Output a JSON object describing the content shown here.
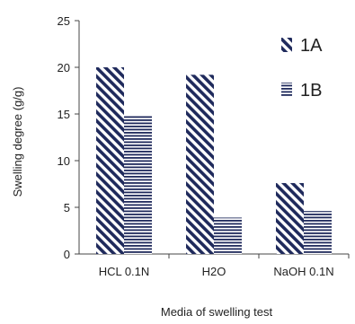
{
  "chart_data": {
    "type": "bar",
    "title": "",
    "xlabel": "Media of swelling test",
    "ylabel": "Swelling degree (g/g)",
    "categories": [
      "HCL 0.1N",
      "H2O",
      "NaOH 0.1N"
    ],
    "series": [
      {
        "name": "1A",
        "values": [
          20.0,
          19.2,
          7.6
        ],
        "pattern": "diagonal-hatch",
        "color": "#1f2a5c"
      },
      {
        "name": "1B",
        "values": [
          14.8,
          3.9,
          4.6
        ],
        "pattern": "horizontal-lines",
        "color": "#1f2a5c"
      }
    ],
    "ylim": [
      0,
      25
    ],
    "yticks": [
      "0",
      "5",
      "10",
      "15",
      "20",
      "25"
    ],
    "grid": false,
    "legend": "top-right"
  }
}
